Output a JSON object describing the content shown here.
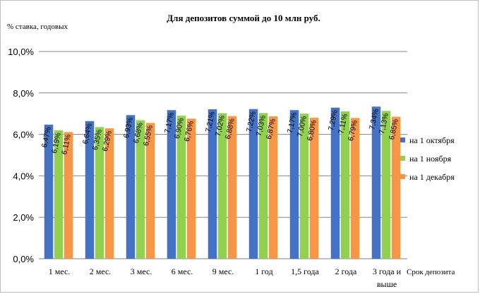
{
  "chart_data": {
    "type": "bar",
    "title": "Для депозитов суммой до 10 млн руб.",
    "ylabel": "% ставка,  годовых",
    "xlabel": "Срок депозита",
    "ylim": [
      0,
      10
    ],
    "yticks": [
      "0,0%",
      "2,0%",
      "4,0%",
      "6,0%",
      "8,0%",
      "10,0%"
    ],
    "categories": [
      "1 мес.",
      "2 мес.",
      "3 мес.",
      "6 мес.",
      "9 мес.",
      "1 год",
      "1,5 года",
      "2 года",
      "3 года и выше"
    ],
    "series": [
      {
        "name": "на 1 октября",
        "color": "#4472c4",
        "values": [
          6.47,
          6.64,
          6.93,
          7.17,
          7.21,
          7.22,
          7.17,
          7.29,
          7.34
        ],
        "labels": [
          "6,47%",
          "6,64%",
          "6,93%",
          "7,17%",
          "7,21%",
          "7,22%",
          "7,17%",
          "7,29%",
          "7,34%"
        ]
      },
      {
        "name": "на 1 ноября",
        "color": "#92d050",
        "values": [
          6.19,
          6.35,
          6.68,
          6.9,
          7.02,
          7.03,
          7.0,
          7.11,
          7.13
        ],
        "labels": [
          "6,19%",
          "6,35%",
          "6,68%",
          "6,90%",
          "7,02%",
          "7,03%",
          "7,00%",
          "7,11%",
          "7,13%"
        ]
      },
      {
        "name": "на 1 декабря",
        "color": "#f79646",
        "values": [
          6.11,
          6.29,
          6.55,
          6.76,
          6.88,
          6.87,
          6.8,
          6.79,
          6.85
        ],
        "labels": [
          "6,11%",
          "6,29%",
          "6,55%",
          "6,76%",
          "6,88%",
          "6,87%",
          "6,80%",
          "6,79%",
          "6,85%"
        ]
      }
    ],
    "grid": true,
    "legend": "right"
  }
}
